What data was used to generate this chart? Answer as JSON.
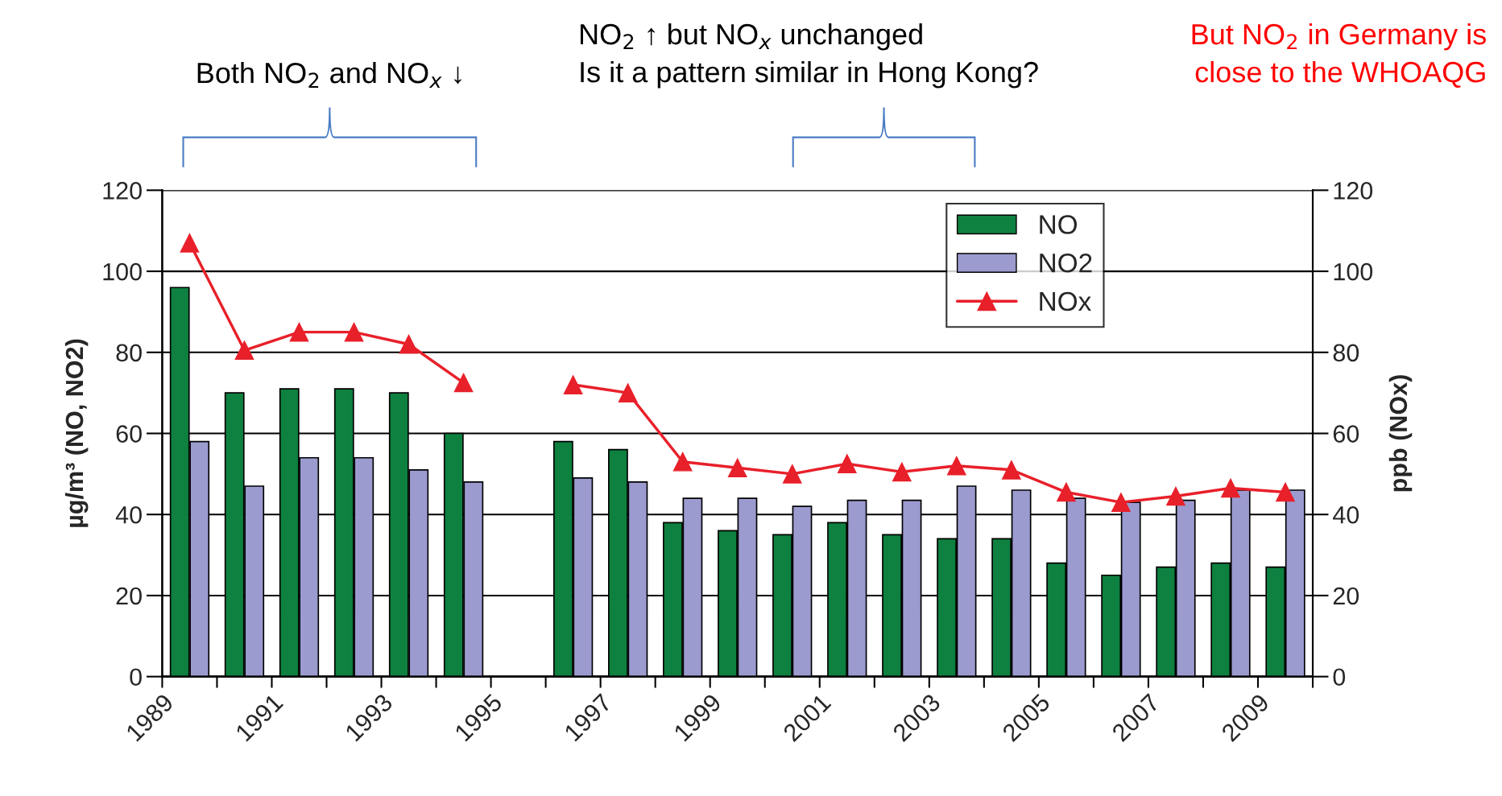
{
  "chart_data": {
    "type": "bar",
    "annotations": [
      "Both NO$_{2}$ and NO$_{x}$ ↓",
      "NO$_{2}$ ↑ but NO$_{x}$ unchanged\nIs it a pattern similar in Hong Kong?",
      "But NO$_{2}$ in Germany is\nclose to the WHOAQG"
    ],
    "ylabel": "µg/m³ (NO, NO2)",
    "y2label": "ppb (NOx)",
    "x": [
      1989.5,
      1990.5,
      1991.5,
      1992.5,
      1993.5,
      1994.5,
      1995.5,
      1996.5,
      1997.5,
      1998.5,
      1999.5,
      2000.5,
      2001.5,
      2002.5,
      2003.5,
      2004.5,
      2005.5,
      2006.5,
      2007.5,
      2008.5,
      2009.5
    ],
    "xlim": [
      1989,
      2010
    ],
    "xticks": [
      1989,
      {
        "value": 1990,
        "label": null
      },
      1991,
      {
        "value": 1992,
        "label": null
      },
      1993,
      {
        "value": 1994,
        "label": null
      },
      1995,
      {
        "value": 1996,
        "label": null
      },
      1997,
      {
        "value": 1998,
        "label": null
      },
      1999,
      {
        "value": 2000,
        "label": null
      },
      2001,
      {
        "value": 2002,
        "label": null
      },
      2003,
      {
        "value": 2004,
        "label": null
      },
      2005,
      {
        "value": 2006,
        "label": null
      },
      2007,
      {
        "value": 2008,
        "label": null
      },
      2009,
      {
        "value": 2010,
        "label": null
      }
    ],
    "series": [
      {
        "name": "NO",
        "color": "#0e8040",
        "values": [
          96,
          70,
          71,
          71,
          70,
          60,
          null,
          58,
          56,
          38,
          36,
          35,
          38,
          35,
          34,
          34,
          28,
          25,
          27,
          28,
          27
        ]
      },
      {
        "name": "NO2",
        "color": "#9b9bd0",
        "values": [
          58,
          47,
          54,
          54,
          51,
          48,
          null,
          49,
          48,
          44,
          44,
          42,
          43.5,
          43.5,
          47,
          46,
          44,
          43,
          43.5,
          46,
          46
        ]
      },
      {
        "name": "NOx",
        "type": "line",
        "axis": "y2",
        "color": "#e8202a",
        "marker": "triangle",
        "values": [
          107,
          80.5,
          85,
          85,
          82,
          72.5,
          null,
          72,
          70,
          53,
          51.5,
          50,
          52.5,
          50.5,
          52,
          51,
          45.5,
          43,
          44.5,
          46.5,
          45.5
        ]
      }
    ],
    "ylim": [
      0,
      120
    ],
    "yticks": [
      0,
      20,
      40,
      60,
      80,
      100,
      120
    ],
    "y2lim": [
      0,
      120
    ],
    "y2ticks": [
      0,
      20,
      40,
      60,
      80,
      100,
      120
    ],
    "grid": "y",
    "legend": "top right"
  }
}
